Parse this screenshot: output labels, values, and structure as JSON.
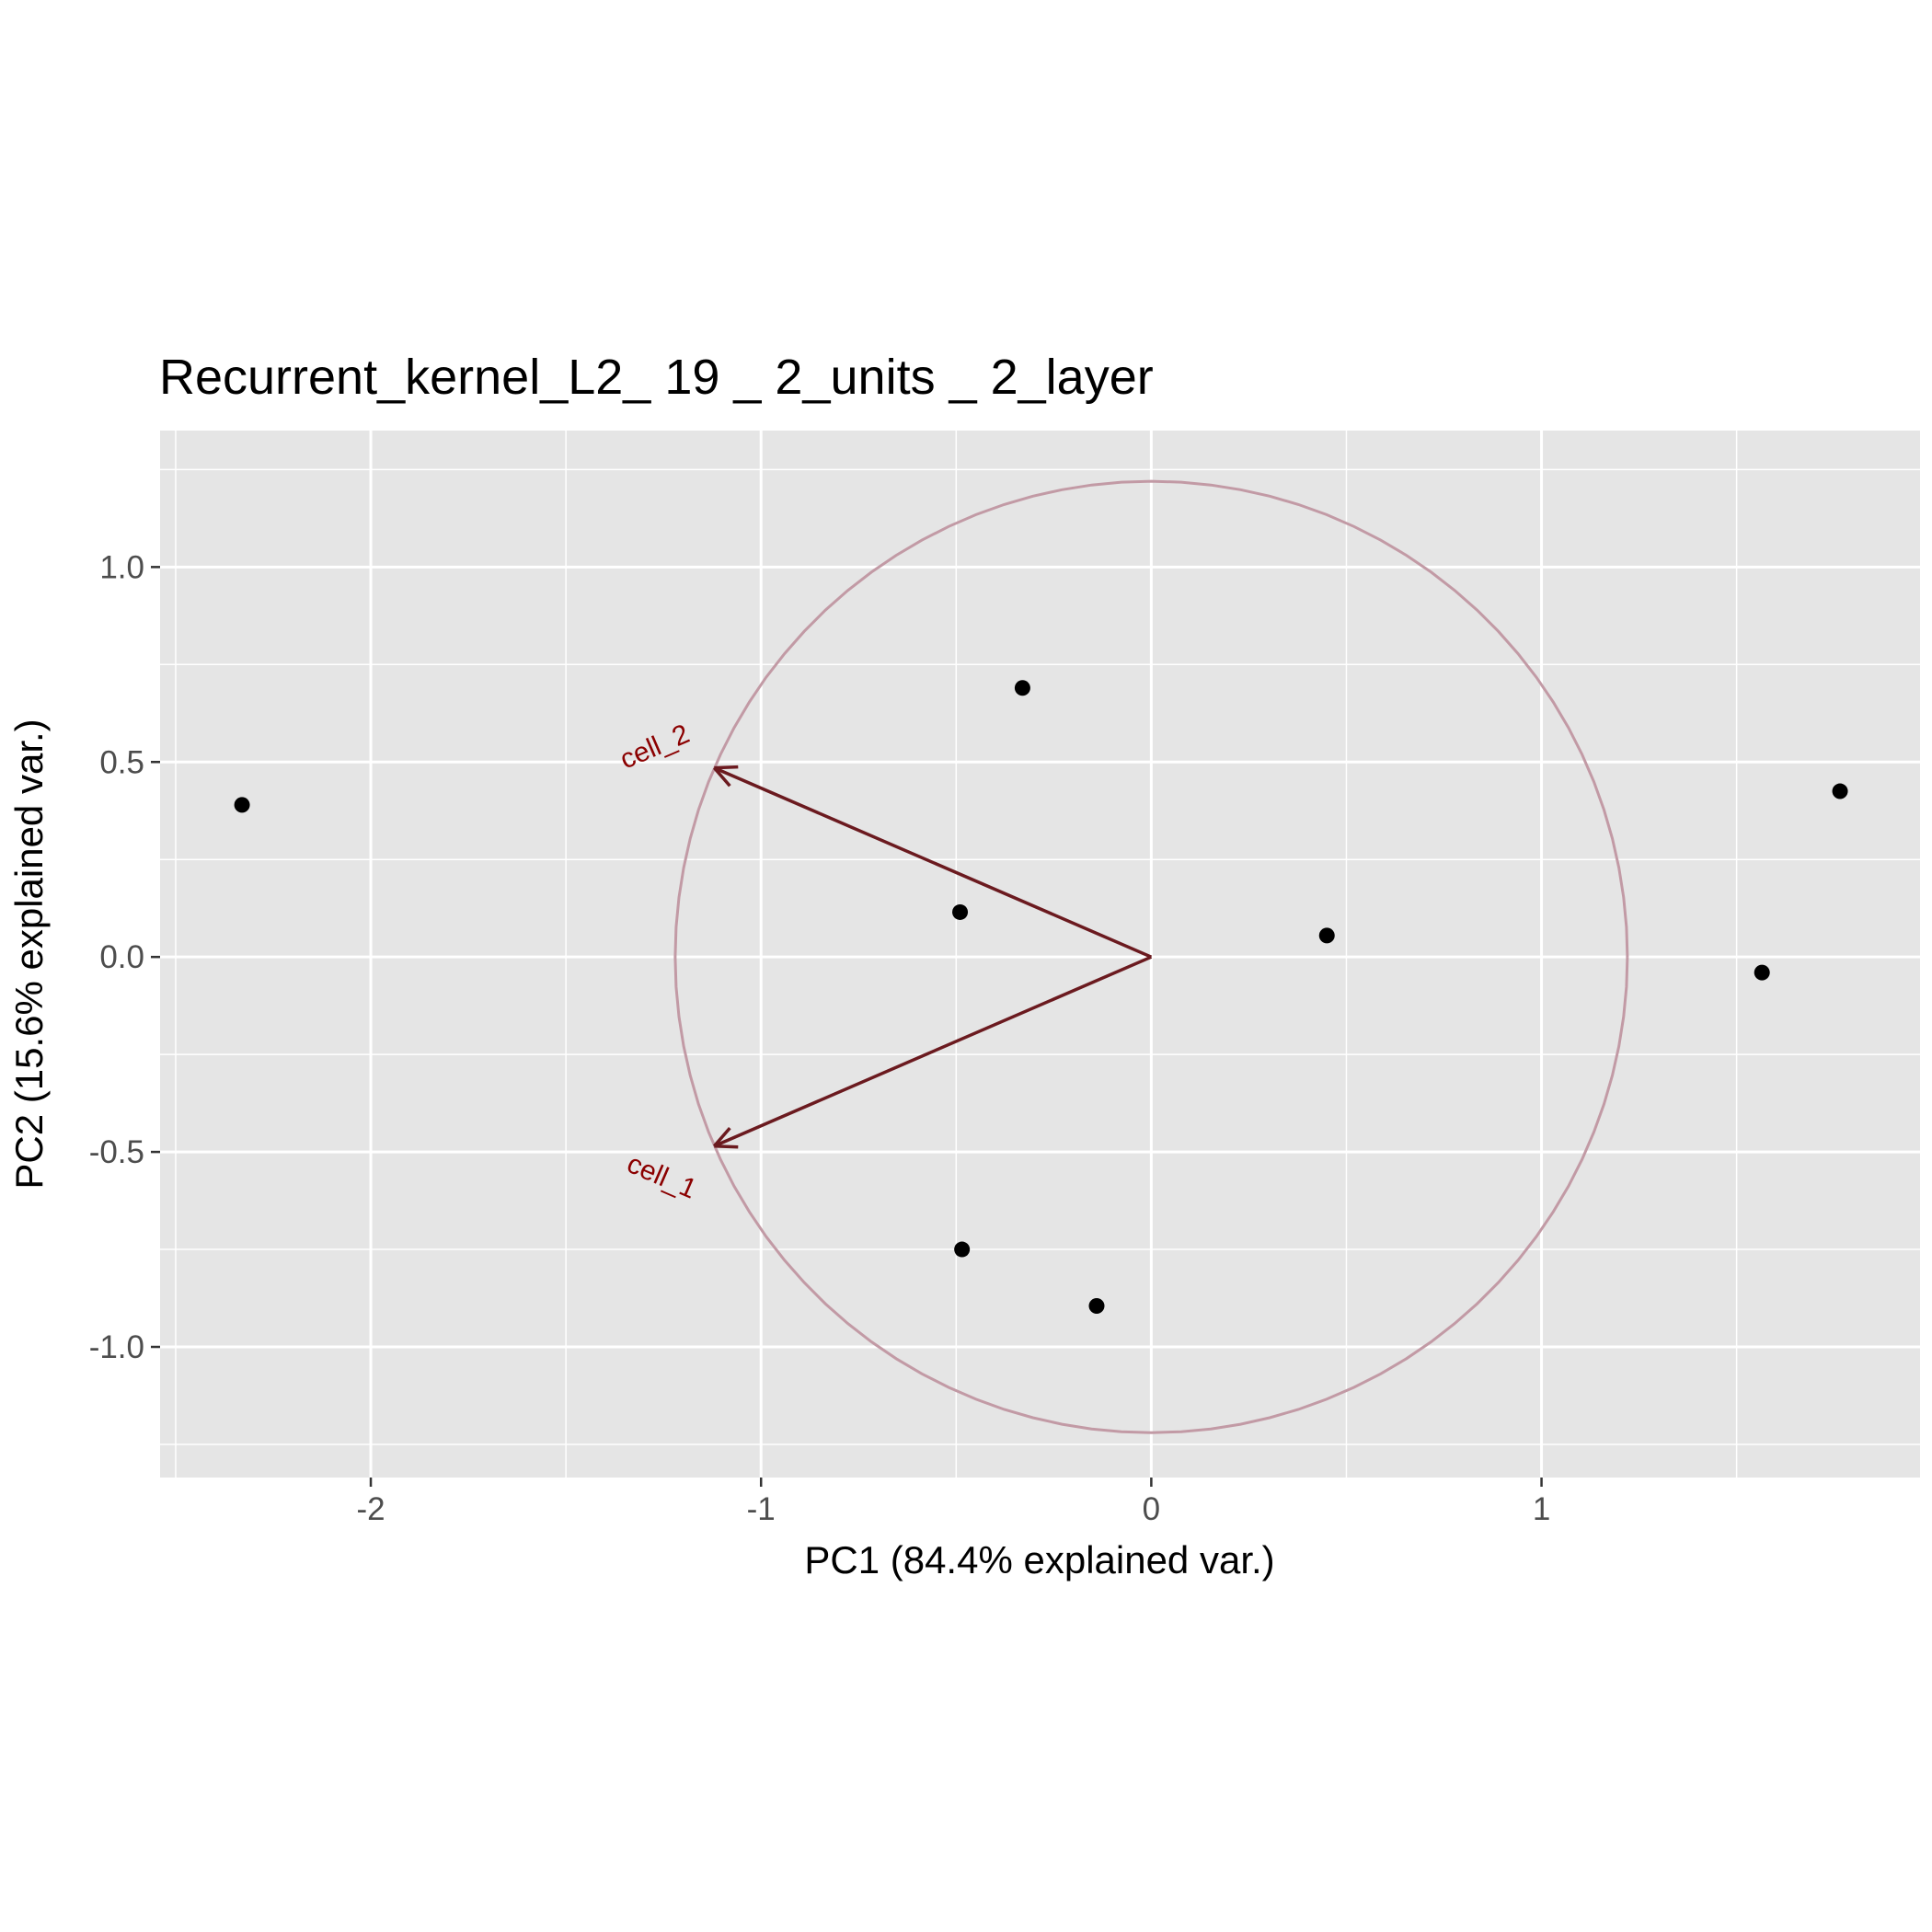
{
  "chart_data": {
    "type": "scatter",
    "title": "Recurrent_kernel_L2_ 19 _ 2_units _ 2_layer",
    "xlabel": "PC1 (84.4% explained var.)",
    "ylabel": "PC2 (15.6% explained var.)",
    "xlim": [
      -2.54,
      1.97
    ],
    "ylim": [
      -1.335,
      1.35
    ],
    "x_ticks": [
      -2,
      -1,
      0,
      1
    ],
    "x_tick_labels": [
      "-2",
      "-1",
      "0",
      "1"
    ],
    "y_ticks": [
      1.0,
      0.5,
      0.0,
      -0.5,
      -1.0
    ],
    "y_tick_labels": [
      "1.0",
      "0.5",
      "0.0",
      "-0.5",
      "-1.0"
    ],
    "grid": true,
    "points": [
      {
        "x": -2.33,
        "y": 0.39
      },
      {
        "x": -0.33,
        "y": 0.69
      },
      {
        "x": -0.49,
        "y": 0.115
      },
      {
        "x": 0.45,
        "y": 0.055
      },
      {
        "x": 1.765,
        "y": 0.425
      },
      {
        "x": 1.565,
        "y": -0.04
      },
      {
        "x": -0.485,
        "y": -0.75
      },
      {
        "x": -0.14,
        "y": -0.895
      }
    ],
    "circle_radius": 1.22,
    "arrows": [
      {
        "label": "cell_2",
        "x": -1.12,
        "y": 0.485
      },
      {
        "label": "cell_1",
        "x": -1.12,
        "y": -0.485
      }
    ],
    "colors": {
      "panel": "#e5e5e5",
      "grid": "#ffffff",
      "point": "#000000",
      "arrow": "#6b1a1f",
      "arrow_label": "#8b0000",
      "circle": "#c29aa5"
    }
  }
}
